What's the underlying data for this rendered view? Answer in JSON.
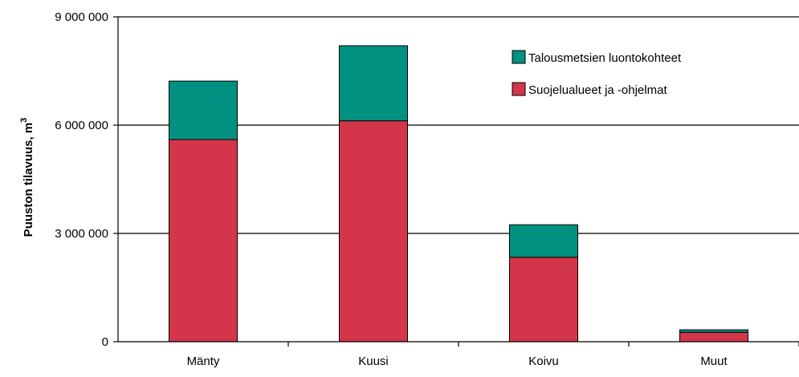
{
  "chart_data": {
    "type": "bar",
    "stacked": true,
    "categories": [
      "Mänty",
      "Kuusi",
      "Koivu",
      "Muut"
    ],
    "series": [
      {
        "name": "Suojelualueet ja -ohjelmat",
        "values": [
          5600000,
          6120000,
          2340000,
          260000
        ],
        "color": "#d3364a"
      },
      {
        "name": "Talousmetsien luontokohteet",
        "values": [
          1620000,
          2080000,
          900000,
          70000
        ],
        "color": "#009180"
      }
    ],
    "ylabel": "Puuston tilavuus, m",
    "ylabel_superscript": "3",
    "ylim": [
      0,
      9000000
    ],
    "yticks": [
      0,
      3000000,
      6000000,
      9000000
    ],
    "ytick_labels": [
      "0",
      "3 000 000",
      "6 000 000",
      "9 000 000"
    ],
    "grid": true,
    "legend_position": "top-right",
    "legend_order": [
      "Talousmetsien luontokohteet",
      "Suojelualueet ja -ohjelmat"
    ]
  }
}
